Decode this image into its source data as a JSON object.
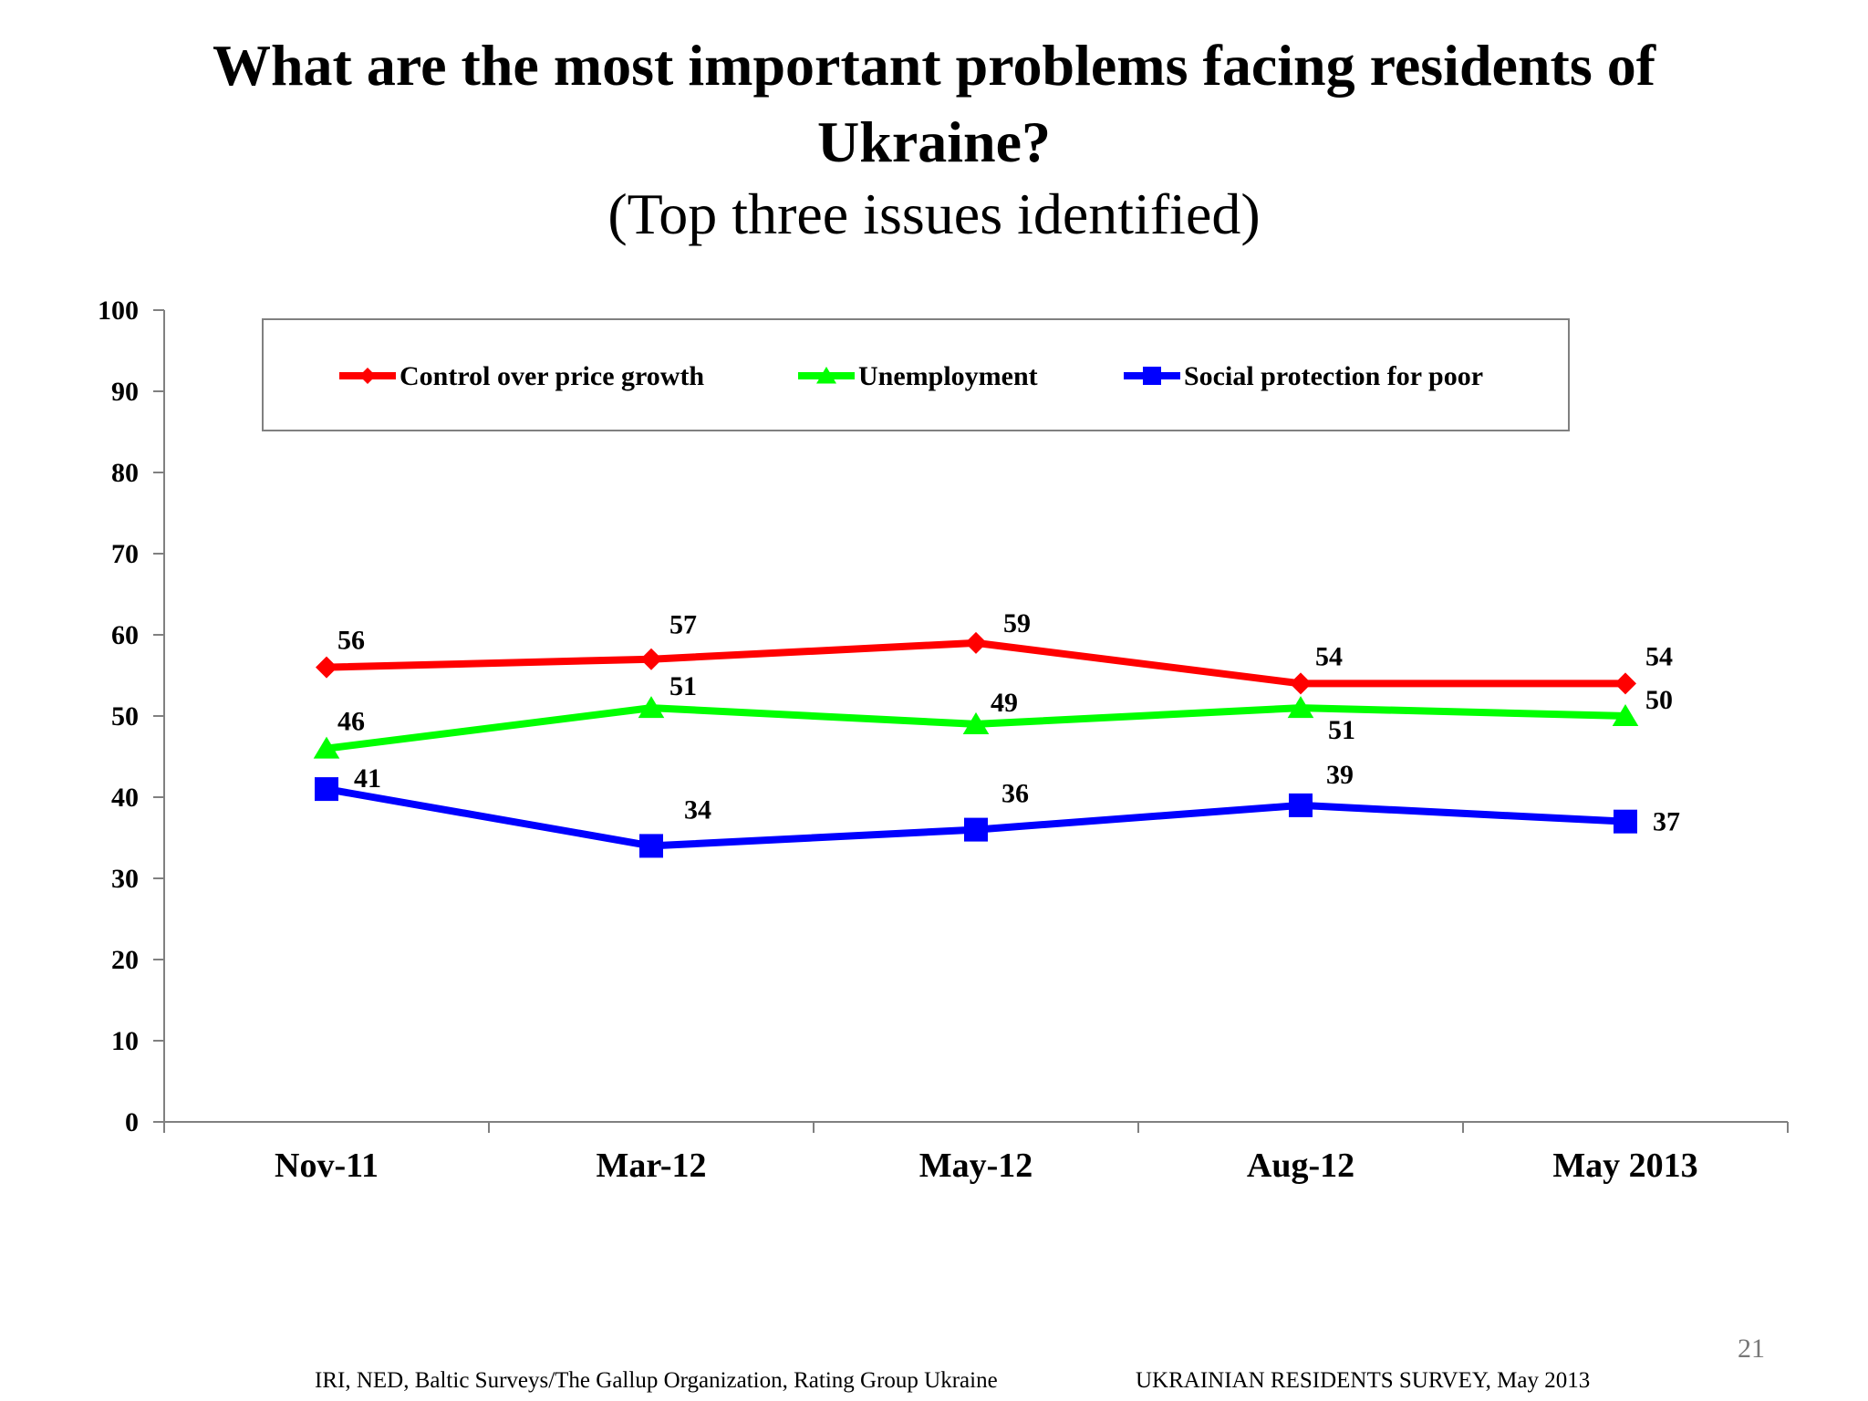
{
  "slide": {
    "title_line1": "What are the most important problems facing residents of",
    "title_line2": "Ukraine?",
    "subtitle": "(Top three issues identified)",
    "footer_source": "IRI, NED,  Baltic Surveys/The Gallup Organization, Rating Group Ukraine",
    "footer_survey": "UKRAINIAN RESIDENTS SURVEY, May  2013",
    "page_number": "21"
  },
  "chart_data": {
    "type": "line",
    "categories": [
      "Nov-11",
      "Mar-12",
      "May-12",
      "Aug-12",
      "May 2013"
    ],
    "ylim": [
      0,
      100
    ],
    "yticks": [
      0,
      10,
      20,
      30,
      40,
      50,
      60,
      70,
      80,
      90,
      100
    ],
    "grid": false,
    "legend_position": "top",
    "series": [
      {
        "name": "Control over price growth",
        "color": "#ff0000",
        "marker": "diamond",
        "values": [
          56,
          57,
          59,
          54,
          54
        ],
        "labels": [
          "56",
          "57",
          "59",
          "54",
          "54"
        ]
      },
      {
        "name": "Unemployment",
        "color": "#00ff00",
        "marker": "triangle",
        "values": [
          46,
          51,
          49,
          51,
          50
        ],
        "labels": [
          "46",
          "51",
          "49",
          "51",
          "50"
        ]
      },
      {
        "name": "Social protection for poor",
        "color": "#0000ff",
        "marker": "square",
        "values": [
          41,
          34,
          36,
          39,
          37
        ],
        "labels": [
          "41",
          "34",
          "36",
          "39",
          "37"
        ]
      }
    ]
  }
}
